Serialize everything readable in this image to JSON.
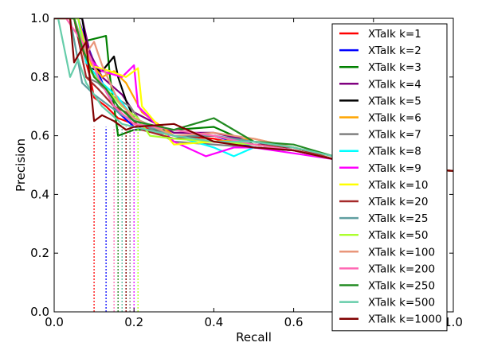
{
  "chart_data": {
    "type": "line",
    "title": "",
    "xlabel": "Recall",
    "ylabel": "Precision",
    "xlim": [
      0.0,
      1.0
    ],
    "ylim": [
      0.0,
      1.0
    ],
    "grid": false,
    "legend_position": "right",
    "x_ticks": [
      "0.0",
      "0.2",
      "0.4",
      "0.6",
      "0.8",
      "1.0"
    ],
    "y_ticks": [
      "0.0",
      "0.2",
      "0.4",
      "0.6",
      "0.8",
      "1.0"
    ],
    "series": [
      {
        "name": "XTalk k=1",
        "color": "#ff0000",
        "cutoff_recall": 0.1,
        "points": [
          [
            0.0,
            1.0
          ],
          [
            0.05,
            1.0
          ],
          [
            0.07,
            0.9
          ],
          [
            0.09,
            0.8
          ],
          [
            0.1,
            0.73
          ],
          [
            0.13,
            0.7
          ],
          [
            0.16,
            0.66
          ],
          [
            0.2,
            0.64
          ],
          [
            0.3,
            0.6
          ],
          [
            0.4,
            0.59
          ],
          [
            0.5,
            0.56
          ],
          [
            0.6,
            0.55
          ],
          [
            0.7,
            0.52
          ],
          [
            0.8,
            0.5
          ],
          [
            0.9,
            0.49
          ],
          [
            1.0,
            0.48
          ]
        ]
      },
      {
        "name": "XTalk k=2",
        "color": "#0000ff",
        "cutoff_recall": 0.13,
        "points": [
          [
            0.0,
            1.0
          ],
          [
            0.06,
            1.0
          ],
          [
            0.08,
            0.92
          ],
          [
            0.1,
            0.85
          ],
          [
            0.13,
            0.75
          ],
          [
            0.16,
            0.68
          ],
          [
            0.2,
            0.63
          ],
          [
            0.3,
            0.6
          ],
          [
            0.4,
            0.6
          ],
          [
            0.5,
            0.56
          ],
          [
            0.6,
            0.55
          ],
          [
            0.7,
            0.52
          ],
          [
            0.8,
            0.5
          ],
          [
            0.9,
            0.49
          ],
          [
            1.0,
            0.48
          ]
        ]
      },
      {
        "name": "XTalk k=3",
        "color": "#008000",
        "cutoff_recall": 0.16,
        "points": [
          [
            0.0,
            1.0
          ],
          [
            0.05,
            1.0
          ],
          [
            0.07,
            0.92
          ],
          [
            0.1,
            0.93
          ],
          [
            0.13,
            0.94
          ],
          [
            0.14,
            0.8
          ],
          [
            0.16,
            0.6
          ],
          [
            0.2,
            0.62
          ],
          [
            0.3,
            0.62
          ],
          [
            0.4,
            0.63
          ],
          [
            0.5,
            0.57
          ],
          [
            0.6,
            0.56
          ],
          [
            0.7,
            0.52
          ],
          [
            0.8,
            0.5
          ],
          [
            0.9,
            0.49
          ],
          [
            1.0,
            0.48
          ]
        ]
      },
      {
        "name": "XTalk k=4",
        "color": "#800080",
        "cutoff_recall": 0.17,
        "points": [
          [
            0.0,
            1.0
          ],
          [
            0.07,
            1.0
          ],
          [
            0.09,
            0.88
          ],
          [
            0.12,
            0.8
          ],
          [
            0.17,
            0.74
          ],
          [
            0.2,
            0.68
          ],
          [
            0.3,
            0.61
          ],
          [
            0.4,
            0.61
          ],
          [
            0.5,
            0.58
          ],
          [
            0.6,
            0.55
          ],
          [
            0.7,
            0.52
          ],
          [
            0.8,
            0.5
          ],
          [
            0.9,
            0.49
          ],
          [
            1.0,
            0.48
          ]
        ]
      },
      {
        "name": "XTalk k=5",
        "color": "#000000",
        "cutoff_recall": 0.18,
        "points": [
          [
            0.0,
            1.0
          ],
          [
            0.07,
            1.0
          ],
          [
            0.09,
            0.83
          ],
          [
            0.12,
            0.82
          ],
          [
            0.15,
            0.87
          ],
          [
            0.16,
            0.8
          ],
          [
            0.18,
            0.72
          ],
          [
            0.2,
            0.66
          ],
          [
            0.3,
            0.6
          ],
          [
            0.4,
            0.6
          ],
          [
            0.5,
            0.57
          ],
          [
            0.6,
            0.55
          ],
          [
            0.7,
            0.52
          ],
          [
            0.8,
            0.5
          ],
          [
            0.9,
            0.49
          ],
          [
            1.0,
            0.48
          ]
        ]
      },
      {
        "name": "XTalk k=6",
        "color": "#ffa500",
        "cutoff_recall": 0.18,
        "points": [
          [
            0.0,
            1.0
          ],
          [
            0.06,
            1.0
          ],
          [
            0.09,
            0.85
          ],
          [
            0.12,
            0.8
          ],
          [
            0.15,
            0.82
          ],
          [
            0.18,
            0.78
          ],
          [
            0.22,
            0.68
          ],
          [
            0.3,
            0.6
          ],
          [
            0.4,
            0.58
          ],
          [
            0.5,
            0.59
          ],
          [
            0.6,
            0.56
          ],
          [
            0.7,
            0.53
          ],
          [
            0.8,
            0.5
          ],
          [
            0.9,
            0.49
          ],
          [
            1.0,
            0.48
          ]
        ]
      },
      {
        "name": "XTalk k=7",
        "color": "#808080",
        "cutoff_recall": 0.19,
        "points": [
          [
            0.0,
            1.0
          ],
          [
            0.05,
            1.0
          ],
          [
            0.08,
            0.8
          ],
          [
            0.11,
            0.78
          ],
          [
            0.14,
            0.74
          ],
          [
            0.19,
            0.7
          ],
          [
            0.22,
            0.64
          ],
          [
            0.3,
            0.58
          ],
          [
            0.4,
            0.57
          ],
          [
            0.5,
            0.56
          ],
          [
            0.6,
            0.55
          ],
          [
            0.7,
            0.52
          ],
          [
            0.8,
            0.5
          ],
          [
            0.9,
            0.49
          ],
          [
            1.0,
            0.48
          ]
        ]
      },
      {
        "name": "XTalk k=8",
        "color": "#00ffff",
        "cutoff_recall": 0.2,
        "points": [
          [
            0.0,
            1.0
          ],
          [
            0.06,
            1.0
          ],
          [
            0.08,
            0.85
          ],
          [
            0.12,
            0.78
          ],
          [
            0.16,
            0.73
          ],
          [
            0.2,
            0.66
          ],
          [
            0.3,
            0.6
          ],
          [
            0.4,
            0.56
          ],
          [
            0.45,
            0.53
          ],
          [
            0.5,
            0.56
          ],
          [
            0.6,
            0.55
          ],
          [
            0.7,
            0.52
          ],
          [
            0.8,
            0.5
          ],
          [
            0.9,
            0.49
          ],
          [
            1.0,
            0.48
          ]
        ]
      },
      {
        "name": "XTalk k=9",
        "color": "#ff00ff",
        "cutoff_recall": 0.2,
        "points": [
          [
            0.0,
            1.0
          ],
          [
            0.06,
            1.0
          ],
          [
            0.09,
            0.86
          ],
          [
            0.12,
            0.82
          ],
          [
            0.17,
            0.8
          ],
          [
            0.2,
            0.84
          ],
          [
            0.21,
            0.7
          ],
          [
            0.3,
            0.58
          ],
          [
            0.38,
            0.53
          ],
          [
            0.45,
            0.56
          ],
          [
            0.5,
            0.56
          ],
          [
            0.6,
            0.54
          ],
          [
            0.7,
            0.52
          ],
          [
            0.8,
            0.5
          ],
          [
            0.9,
            0.49
          ],
          [
            1.0,
            0.48
          ]
        ]
      },
      {
        "name": "XTalk k=10",
        "color": "#ffff00",
        "cutoff_recall": 0.21,
        "points": [
          [
            0.0,
            1.0
          ],
          [
            0.06,
            1.0
          ],
          [
            0.09,
            0.84
          ],
          [
            0.14,
            0.82
          ],
          [
            0.18,
            0.8
          ],
          [
            0.21,
            0.83
          ],
          [
            0.22,
            0.7
          ],
          [
            0.3,
            0.57
          ],
          [
            0.4,
            0.58
          ],
          [
            0.5,
            0.57
          ],
          [
            0.6,
            0.55
          ],
          [
            0.7,
            0.52
          ],
          [
            0.8,
            0.5
          ],
          [
            0.9,
            0.49
          ],
          [
            1.0,
            0.48
          ]
        ]
      },
      {
        "name": "XTalk k=20",
        "color": "#a52a2a",
        "cutoff_recall": 0.18,
        "points": [
          [
            0.0,
            1.0
          ],
          [
            0.05,
            1.0
          ],
          [
            0.08,
            0.8
          ],
          [
            0.11,
            0.76
          ],
          [
            0.15,
            0.7
          ],
          [
            0.18,
            0.68
          ],
          [
            0.22,
            0.62
          ],
          [
            0.3,
            0.59
          ],
          [
            0.4,
            0.6
          ],
          [
            0.5,
            0.57
          ],
          [
            0.6,
            0.56
          ],
          [
            0.7,
            0.52
          ],
          [
            0.8,
            0.5
          ],
          [
            0.9,
            0.49
          ],
          [
            1.0,
            0.48
          ]
        ]
      },
      {
        "name": "XTalk k=25",
        "color": "#5f9ea0",
        "cutoff_recall": 0.17,
        "points": [
          [
            0.0,
            1.0
          ],
          [
            0.04,
            1.0
          ],
          [
            0.07,
            0.78
          ],
          [
            0.1,
            0.74
          ],
          [
            0.14,
            0.7
          ],
          [
            0.17,
            0.67
          ],
          [
            0.22,
            0.64
          ],
          [
            0.3,
            0.6
          ],
          [
            0.4,
            0.6
          ],
          [
            0.5,
            0.58
          ],
          [
            0.6,
            0.56
          ],
          [
            0.7,
            0.53
          ],
          [
            0.8,
            0.5
          ],
          [
            0.9,
            0.49
          ],
          [
            1.0,
            0.48
          ]
        ]
      },
      {
        "name": "XTalk k=50",
        "color": "#adff2f",
        "cutoff_recall": 0.21,
        "points": [
          [
            0.0,
            1.0
          ],
          [
            0.06,
            1.0
          ],
          [
            0.09,
            0.82
          ],
          [
            0.13,
            0.76
          ],
          [
            0.17,
            0.7
          ],
          [
            0.21,
            0.66
          ],
          [
            0.24,
            0.6
          ],
          [
            0.3,
            0.59
          ],
          [
            0.4,
            0.58
          ],
          [
            0.5,
            0.57
          ],
          [
            0.6,
            0.55
          ],
          [
            0.7,
            0.52
          ],
          [
            0.8,
            0.5
          ],
          [
            0.9,
            0.49
          ],
          [
            1.0,
            0.48
          ]
        ]
      },
      {
        "name": "XTalk k=100",
        "color": "#e9967a",
        "cutoff_recall": 0.16,
        "points": [
          [
            0.0,
            1.0
          ],
          [
            0.05,
            1.0
          ],
          [
            0.08,
            0.88
          ],
          [
            0.1,
            0.92
          ],
          [
            0.12,
            0.84
          ],
          [
            0.16,
            0.72
          ],
          [
            0.2,
            0.66
          ],
          [
            0.3,
            0.6
          ],
          [
            0.4,
            0.61
          ],
          [
            0.5,
            0.59
          ],
          [
            0.6,
            0.56
          ],
          [
            0.7,
            0.53
          ],
          [
            0.8,
            0.5
          ],
          [
            0.9,
            0.49
          ],
          [
            1.0,
            0.48
          ]
        ]
      },
      {
        "name": "XTalk k=200",
        "color": "#ff69b4",
        "cutoff_recall": 0.15,
        "points": [
          [
            0.0,
            1.0
          ],
          [
            0.03,
            1.0
          ],
          [
            0.04,
            0.98
          ],
          [
            0.08,
            0.9
          ],
          [
            0.11,
            0.8
          ],
          [
            0.15,
            0.7
          ],
          [
            0.2,
            0.64
          ],
          [
            0.3,
            0.62
          ],
          [
            0.4,
            0.6
          ],
          [
            0.5,
            0.57
          ],
          [
            0.6,
            0.55
          ],
          [
            0.7,
            0.52
          ],
          [
            0.8,
            0.5
          ],
          [
            0.9,
            0.49
          ],
          [
            1.0,
            0.48
          ]
        ]
      },
      {
        "name": "XTalk k=250",
        "color": "#228b22",
        "cutoff_recall": 0.16,
        "points": [
          [
            0.0,
            1.0
          ],
          [
            0.05,
            1.0
          ],
          [
            0.07,
            0.9
          ],
          [
            0.1,
            0.8
          ],
          [
            0.13,
            0.76
          ],
          [
            0.16,
            0.7
          ],
          [
            0.2,
            0.65
          ],
          [
            0.3,
            0.62
          ],
          [
            0.4,
            0.66
          ],
          [
            0.5,
            0.58
          ],
          [
            0.6,
            0.57
          ],
          [
            0.7,
            0.53
          ],
          [
            0.8,
            0.5
          ],
          [
            0.9,
            0.49
          ],
          [
            1.0,
            0.48
          ]
        ]
      },
      {
        "name": "XTalk k=500",
        "color": "#66cdaa",
        "cutoff_recall": 0.17,
        "points": [
          [
            0.0,
            1.0
          ],
          [
            0.01,
            1.0
          ],
          [
            0.04,
            0.8
          ],
          [
            0.06,
            0.86
          ],
          [
            0.08,
            0.78
          ],
          [
            0.12,
            0.7
          ],
          [
            0.17,
            0.64
          ],
          [
            0.2,
            0.63
          ],
          [
            0.3,
            0.6
          ],
          [
            0.4,
            0.58
          ],
          [
            0.5,
            0.58
          ],
          [
            0.6,
            0.56
          ],
          [
            0.7,
            0.53
          ],
          [
            0.8,
            0.5
          ],
          [
            0.9,
            0.49
          ],
          [
            1.0,
            0.48
          ]
        ]
      },
      {
        "name": "XTalk k=1000",
        "color": "#800000",
        "cutoff_recall": 0.18,
        "points": [
          [
            0.0,
            1.0
          ],
          [
            0.04,
            1.0
          ],
          [
            0.05,
            0.85
          ],
          [
            0.08,
            0.92
          ],
          [
            0.1,
            0.65
          ],
          [
            0.12,
            0.67
          ],
          [
            0.15,
            0.65
          ],
          [
            0.18,
            0.62
          ],
          [
            0.2,
            0.63
          ],
          [
            0.3,
            0.64
          ],
          [
            0.4,
            0.58
          ],
          [
            0.5,
            0.56
          ],
          [
            0.6,
            0.55
          ],
          [
            0.7,
            0.52
          ],
          [
            0.8,
            0.5
          ],
          [
            0.9,
            0.49
          ],
          [
            1.0,
            0.48
          ]
        ]
      }
    ]
  }
}
